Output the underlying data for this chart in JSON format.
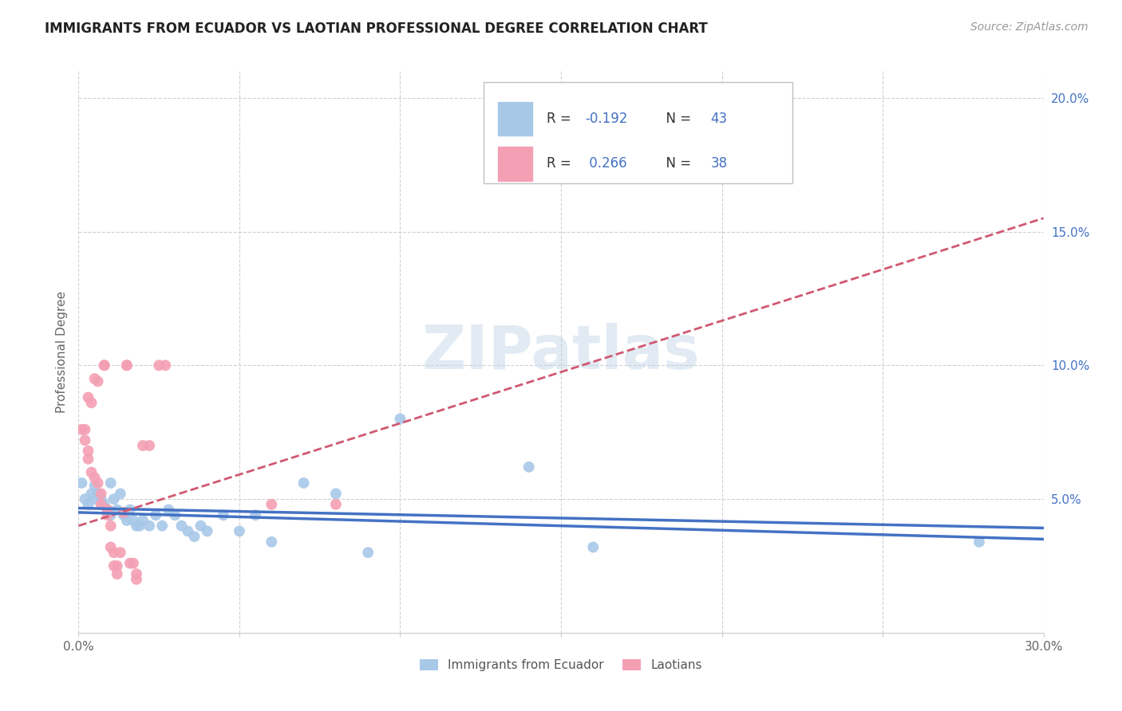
{
  "title": "IMMIGRANTS FROM ECUADOR VS LAOTIAN PROFESSIONAL DEGREE CORRELATION CHART",
  "source": "Source: ZipAtlas.com",
  "ylabel": "Professional Degree",
  "xlim": [
    0.0,
    0.3
  ],
  "ylim": [
    0.0,
    0.21
  ],
  "xticks": [
    0.0,
    0.05,
    0.1,
    0.15,
    0.2,
    0.25,
    0.3
  ],
  "yticks": [
    0.0,
    0.05,
    0.1,
    0.15,
    0.2
  ],
  "ytick_labels": [
    "",
    "5.0%",
    "10.0%",
    "15.0%",
    "20.0%"
  ],
  "legend_labels": [
    "Immigrants from Ecuador",
    "Laotians"
  ],
  "ecuador_color": "#a8c8e8",
  "laotian_color": "#f4a0b4",
  "ecuador_line_color": "#4472c4",
  "laotian_line_color": "#d05870",
  "ecuador_R": -0.192,
  "ecuador_N": 43,
  "laotian_R": 0.266,
  "laotian_N": 38,
  "watermark": "ZIPatlas",
  "ecuador_scatter": [
    [
      0.001,
      0.056
    ],
    [
      0.002,
      0.05
    ],
    [
      0.003,
      0.048
    ],
    [
      0.004,
      0.052
    ],
    [
      0.005,
      0.055
    ],
    [
      0.005,
      0.05
    ],
    [
      0.006,
      0.052
    ],
    [
      0.007,
      0.05
    ],
    [
      0.008,
      0.048
    ],
    [
      0.009,
      0.046
    ],
    [
      0.01,
      0.056
    ],
    [
      0.01,
      0.044
    ],
    [
      0.011,
      0.05
    ],
    [
      0.012,
      0.046
    ],
    [
      0.013,
      0.052
    ],
    [
      0.014,
      0.044
    ],
    [
      0.015,
      0.042
    ],
    [
      0.016,
      0.046
    ],
    [
      0.017,
      0.042
    ],
    [
      0.018,
      0.04
    ],
    [
      0.019,
      0.04
    ],
    [
      0.02,
      0.042
    ],
    [
      0.022,
      0.04
    ],
    [
      0.024,
      0.044
    ],
    [
      0.026,
      0.04
    ],
    [
      0.028,
      0.046
    ],
    [
      0.03,
      0.044
    ],
    [
      0.032,
      0.04
    ],
    [
      0.034,
      0.038
    ],
    [
      0.036,
      0.036
    ],
    [
      0.038,
      0.04
    ],
    [
      0.04,
      0.038
    ],
    [
      0.045,
      0.044
    ],
    [
      0.05,
      0.038
    ],
    [
      0.055,
      0.044
    ],
    [
      0.06,
      0.034
    ],
    [
      0.07,
      0.056
    ],
    [
      0.08,
      0.052
    ],
    [
      0.09,
      0.03
    ],
    [
      0.1,
      0.08
    ],
    [
      0.14,
      0.062
    ],
    [
      0.16,
      0.032
    ],
    [
      0.28,
      0.034
    ]
  ],
  "laotian_scatter": [
    [
      0.001,
      0.076
    ],
    [
      0.002,
      0.076
    ],
    [
      0.002,
      0.072
    ],
    [
      0.003,
      0.068
    ],
    [
      0.003,
      0.065
    ],
    [
      0.003,
      0.088
    ],
    [
      0.004,
      0.086
    ],
    [
      0.004,
      0.06
    ],
    [
      0.005,
      0.058
    ],
    [
      0.005,
      0.095
    ],
    [
      0.006,
      0.094
    ],
    [
      0.006,
      0.056
    ],
    [
      0.007,
      0.052
    ],
    [
      0.007,
      0.048
    ],
    [
      0.008,
      0.1
    ],
    [
      0.008,
      0.1
    ],
    [
      0.009,
      0.046
    ],
    [
      0.009,
      0.044
    ],
    [
      0.01,
      0.04
    ],
    [
      0.01,
      0.032
    ],
    [
      0.011,
      0.03
    ],
    [
      0.011,
      0.025
    ],
    [
      0.012,
      0.025
    ],
    [
      0.012,
      0.022
    ],
    [
      0.013,
      0.03
    ],
    [
      0.014,
      0.045
    ],
    [
      0.015,
      0.1
    ],
    [
      0.015,
      0.1
    ],
    [
      0.016,
      0.026
    ],
    [
      0.017,
      0.026
    ],
    [
      0.018,
      0.022
    ],
    [
      0.018,
      0.02
    ],
    [
      0.02,
      0.07
    ],
    [
      0.022,
      0.07
    ],
    [
      0.025,
      0.1
    ],
    [
      0.027,
      0.1
    ],
    [
      0.06,
      0.048
    ],
    [
      0.08,
      0.048
    ]
  ]
}
